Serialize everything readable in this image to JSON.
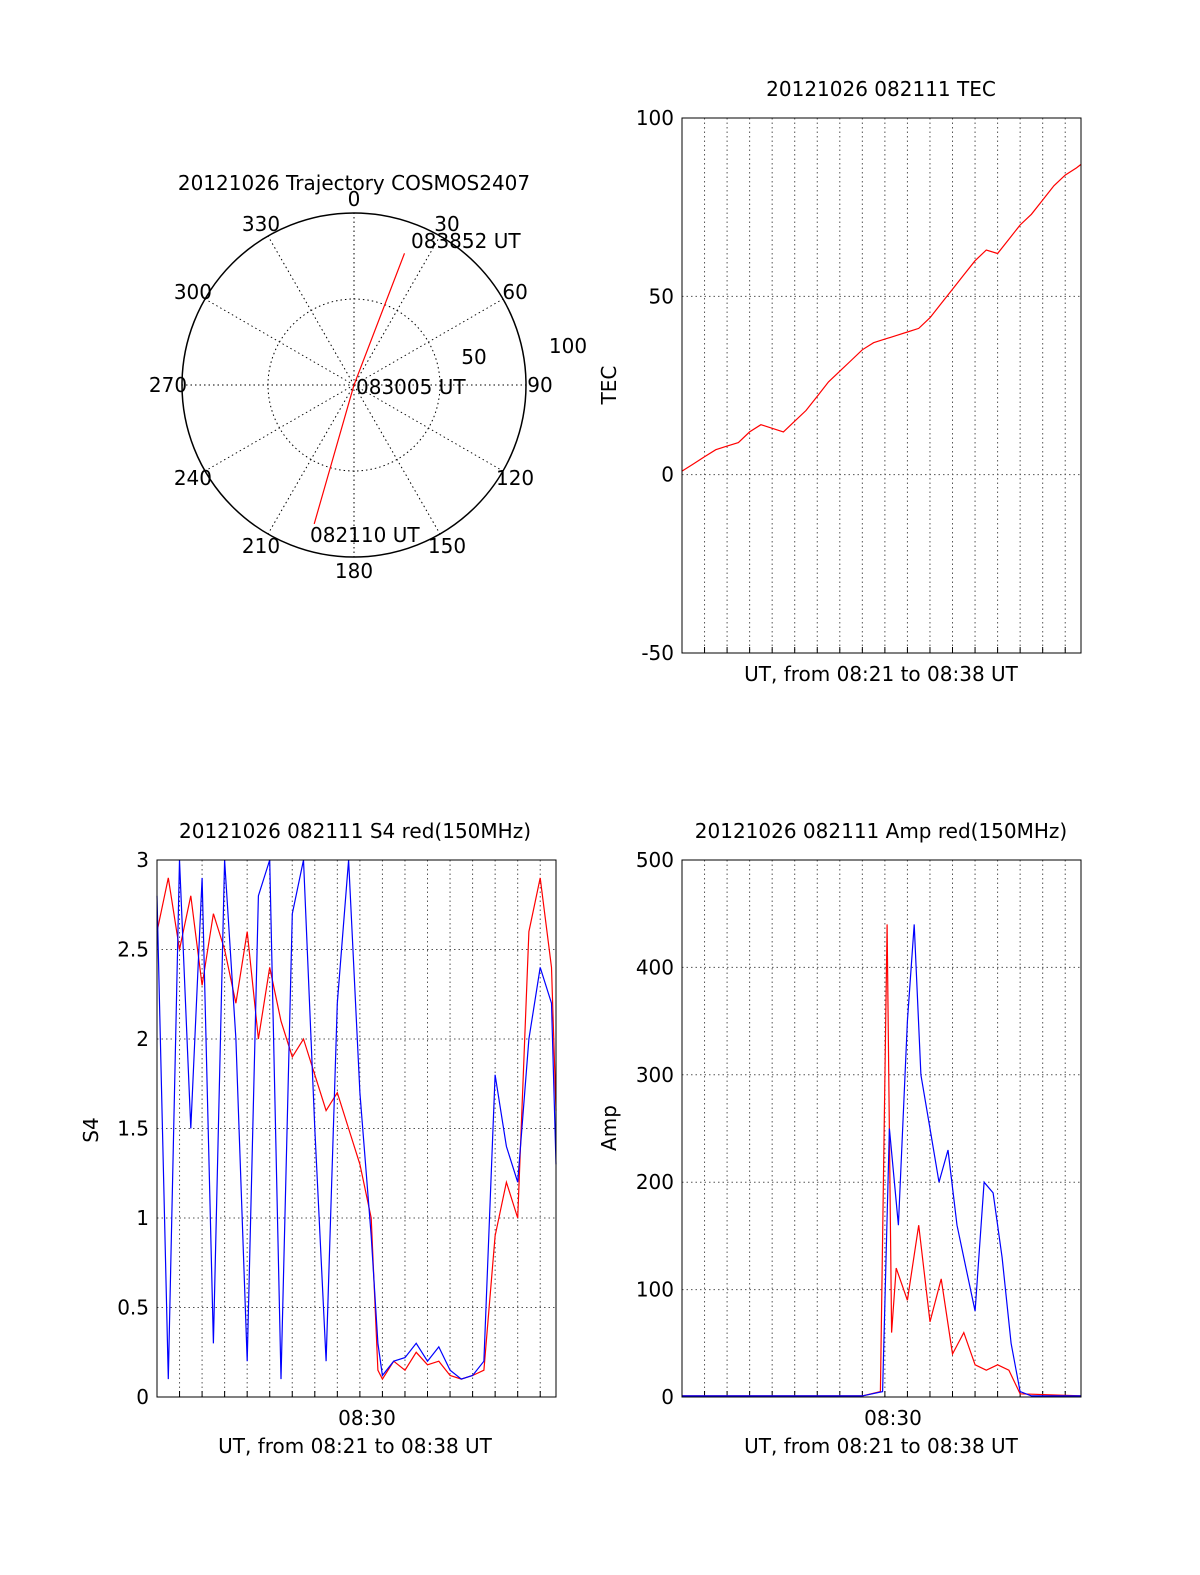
{
  "colors": {
    "red": "#ff0000",
    "blue": "#0000ff",
    "axis": "#000000",
    "grid": "#555555"
  },
  "chart_data": [
    {
      "type": "polar",
      "title": "20121026 Trajectory COSMOS2407",
      "angle_labels": [
        "0",
        "30",
        "60",
        "90",
        "120",
        "150",
        "180",
        "210",
        "240",
        "270",
        "300",
        "330"
      ],
      "radial_labels": [
        "50",
        "100"
      ],
      "rlim": [
        0,
        100
      ],
      "grid": true,
      "series": [
        {
          "color": "red",
          "points": [
            {
              "az": 196,
              "r": 84
            },
            {
              "az": 0,
              "r": 0
            },
            {
              "az": 21,
              "r": 82
            }
          ]
        }
      ],
      "annotations": [
        "083852 UT",
        "083005 UT",
        "082110 UT"
      ]
    },
    {
      "type": "line",
      "title": "20121026 082111 TEC",
      "xlabel": "UT, from 08:21 to 08:38 UT",
      "ylabel": "TEC",
      "xlim": [
        0,
        17.7
      ],
      "ylim": [
        -50,
        100
      ],
      "yticks": [
        "-50",
        "0",
        "50",
        "100"
      ],
      "grid": true,
      "series": [
        {
          "color": "red",
          "x": [
            0,
            0.5,
            1,
            1.5,
            2,
            2.5,
            3,
            3.5,
            4,
            4.5,
            5,
            5.5,
            6,
            6.5,
            7,
            7.5,
            8,
            8.5,
            9,
            9.5,
            10,
            10.5,
            11,
            11.5,
            12,
            12.5,
            13,
            13.5,
            14,
            14.5,
            15,
            15.5,
            16,
            16.5,
            17,
            17.5,
            17.7
          ],
          "y": [
            1,
            3,
            5,
            7,
            8,
            9,
            12,
            14,
            13,
            12,
            15,
            18,
            22,
            26,
            29,
            32,
            35,
            37,
            38,
            39,
            40,
            41,
            44,
            48,
            52,
            56,
            60,
            63,
            62,
            66,
            70,
            73,
            77,
            81,
            84,
            86,
            87
          ]
        }
      ]
    },
    {
      "type": "line",
      "title": "20121026 082111 S4 red(150MHz)",
      "xlabel": "UT, from 08:21 to 08:38 UT",
      "ylabel": "S4",
      "xtick_label": "08:30",
      "xlim": [
        0,
        17.7
      ],
      "ylim": [
        0,
        3
      ],
      "yticks": [
        "0",
        "0.5",
        "1",
        "1.5",
        "2",
        "2.5",
        "3"
      ],
      "grid": true,
      "series": [
        {
          "color": "red",
          "x": [
            0,
            0.5,
            1,
            1.5,
            2,
            2.5,
            3,
            3.5,
            4,
            4.5,
            5,
            5.5,
            6,
            6.5,
            7,
            7.5,
            8,
            8.5,
            9,
            9.5,
            9.8,
            10,
            10.5,
            11,
            11.5,
            12,
            12.5,
            13,
            13.5,
            14,
            14.5,
            15,
            15.5,
            16,
            16.5,
            17,
            17.5,
            17.7
          ],
          "y": [
            2.6,
            2.9,
            2.5,
            2.8,
            2.3,
            2.7,
            2.5,
            2.2,
            2.6,
            2.0,
            2.4,
            2.1,
            1.9,
            2.0,
            1.8,
            1.6,
            1.7,
            1.5,
            1.3,
            1.0,
            0.15,
            0.1,
            0.2,
            0.15,
            0.25,
            0.18,
            0.2,
            0.12,
            0.1,
            0.12,
            0.15,
            0.9,
            1.2,
            1.0,
            2.6,
            2.9,
            2.4,
            1.6
          ]
        },
        {
          "color": "blue",
          "x": [
            0,
            0.5,
            1,
            1.5,
            2,
            2.5,
            3,
            3.5,
            4,
            4.5,
            5,
            5.5,
            6,
            6.5,
            7,
            7.5,
            8,
            8.5,
            9,
            9.5,
            9.8,
            10,
            10.5,
            11,
            11.5,
            12,
            12.5,
            13,
            13.5,
            14,
            14.5,
            15,
            15.5,
            16,
            16.5,
            17,
            17.5,
            17.7
          ],
          "y": [
            2.8,
            0.1,
            3.0,
            1.5,
            2.9,
            0.3,
            3.0,
            2.0,
            0.2,
            2.8,
            3.0,
            0.1,
            2.7,
            3.0,
            1.5,
            0.2,
            2.2,
            3.0,
            1.7,
            0.9,
            0.3,
            0.12,
            0.2,
            0.22,
            0.3,
            0.2,
            0.28,
            0.15,
            0.1,
            0.12,
            0.2,
            1.8,
            1.4,
            1.2,
            2.0,
            2.4,
            2.2,
            1.3
          ]
        }
      ]
    },
    {
      "type": "line",
      "title": "20121026 082111 Amp red(150MHz)",
      "xlabel": "UT, from 08:21 to 08:38 UT",
      "ylabel": "Amp",
      "xtick_label": "08:30",
      "xlim": [
        0,
        17.7
      ],
      "ylim": [
        0,
        500
      ],
      "yticks": [
        "0",
        "100",
        "200",
        "300",
        "400",
        "500"
      ],
      "grid": true,
      "series": [
        {
          "color": "red",
          "x": [
            0,
            2,
            4,
            6,
            8,
            8.8,
            9.1,
            9.3,
            9.5,
            10,
            10.5,
            11,
            11.5,
            12,
            12.5,
            13,
            13.5,
            14,
            14.5,
            15,
            17.7
          ],
          "y": [
            1,
            1,
            1,
            1,
            1,
            5,
            440,
            60,
            120,
            90,
            160,
            70,
            110,
            40,
            60,
            30,
            25,
            30,
            25,
            3,
            1
          ]
        },
        {
          "color": "blue",
          "x": [
            0,
            2,
            4,
            6,
            8,
            8.9,
            9.2,
            9.6,
            10,
            10.3,
            10.6,
            11,
            11.4,
            11.8,
            12.2,
            12.6,
            13,
            13.4,
            13.8,
            14.2,
            14.6,
            15,
            15.5,
            17.7
          ],
          "y": [
            1,
            1,
            1,
            1,
            1,
            5,
            250,
            160,
            350,
            440,
            300,
            250,
            200,
            230,
            160,
            120,
            80,
            200,
            190,
            130,
            50,
            5,
            1,
            1
          ]
        }
      ]
    }
  ]
}
